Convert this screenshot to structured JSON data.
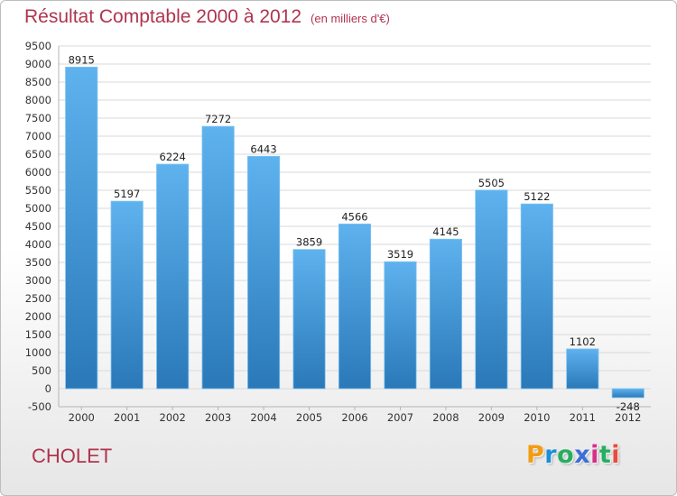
{
  "title": "Résultat Comptable 2000 à 2012",
  "subtitle": "(en milliers d'€)",
  "city": "CHOLET",
  "logo": {
    "letters": [
      "P",
      "r",
      "o",
      "x",
      "i",
      "t",
      "i"
    ],
    "colors": [
      "#f39c12",
      "#1a8fd6",
      "#27ae60",
      "#3a6fd8",
      "#d6308a",
      "#27ae60",
      "#e74c3c"
    ]
  },
  "colors": {
    "bar_top": "#5eb2ee",
    "bar_bottom": "#2a78b8",
    "grid": "#d9d9d9",
    "axis": "#b5b5b5",
    "title": "#b0344f"
  },
  "chart_data": {
    "type": "bar",
    "title": "Résultat Comptable 2000 à 2012",
    "subtitle": "(en milliers d'€)",
    "categories": [
      "2000",
      "2001",
      "2002",
      "2003",
      "2004",
      "2005",
      "2006",
      "2007",
      "2008",
      "2009",
      "2010",
      "2011",
      "2012"
    ],
    "values": [
      8915,
      5197,
      6224,
      7272,
      6443,
      3859,
      4566,
      3519,
      4145,
      5505,
      5122,
      1102,
      -248
    ],
    "ylim": [
      -500,
      9500
    ],
    "yticks": [
      -500,
      0,
      500,
      1000,
      1500,
      2000,
      2500,
      3000,
      3500,
      4000,
      4500,
      5000,
      5500,
      6000,
      6500,
      7000,
      7500,
      8000,
      8500,
      9000,
      9500
    ],
    "grid": true,
    "legend": "none"
  }
}
